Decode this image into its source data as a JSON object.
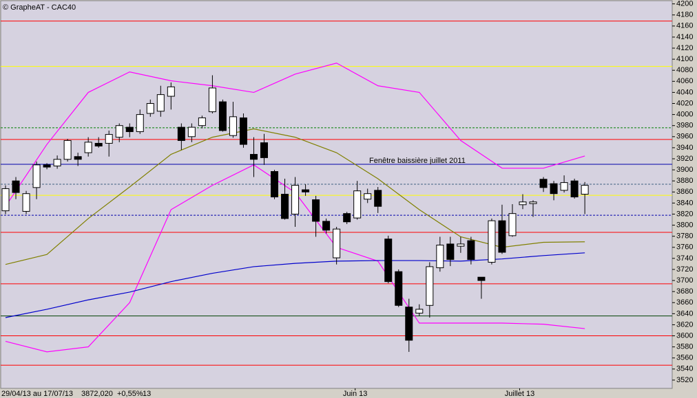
{
  "chart_data": {
    "type": "candlestick",
    "title": "© GrapheAT - CAC40",
    "period": "29/04/13 au 17/07/13",
    "last": "3872,020",
    "change": "+0,55%",
    "count": "13",
    "annotation": "Fenêtre baissière juillet 2011",
    "ylim": [
      3505,
      4207
    ],
    "yticks": [
      3520,
      3540,
      3560,
      3580,
      3600,
      3620,
      3640,
      3660,
      3680,
      3700,
      3720,
      3740,
      3760,
      3780,
      3800,
      3820,
      3840,
      3860,
      3880,
      3900,
      3920,
      3940,
      3960,
      3980,
      4000,
      4020,
      4040,
      4060,
      4080,
      4100,
      4120,
      4140,
      4160,
      4180,
      4200
    ],
    "xlim": [
      -0.5,
      63.8
    ],
    "xticks": [
      {
        "value": 33.8,
        "label": "Juin 13"
      },
      {
        "value": 49.7,
        "label": "Juillet 13"
      }
    ],
    "up_color": "#ffffff",
    "down_color": "#000000",
    "open": [
      3826,
      3880,
      3825,
      3868,
      3909,
      3907,
      3919,
      3924,
      3931,
      3948,
      3948,
      3959,
      3977,
      3969,
      4002,
      4006,
      4033,
      3977,
      3960,
      3980,
      4005,
      4023,
      3962,
      3994,
      3928,
      3949,
      3897,
      3856,
      3820,
      3864,
      3846,
      3807,
      3741,
      3821,
      3813,
      3847,
      3863,
      3775,
      3716,
      3652,
      3641,
      3655,
      3723,
      3766,
      3762,
      3772,
      3706,
      3733,
      3808,
      3781,
      3837,
      3839,
      3883,
      3875,
      3863,
      3880,
      3856
    ],
    "high": [
      3872,
      3887,
      3862,
      3915,
      3912,
      3926,
      3956,
      3931,
      3959,
      3959,
      3971,
      3984,
      3984,
      4009,
      4027,
      4052,
      4058,
      3984,
      3984,
      3998,
      4071,
      4027,
      4023,
      4002,
      3959,
      3965,
      3900,
      3884,
      3887,
      3874,
      3853,
      3812,
      3797,
      3824,
      3880,
      3866,
      3869,
      3781,
      3720,
      3667,
      3657,
      3733,
      3779,
      3779,
      3779,
      3779,
      3706,
      3812,
      3837,
      3838,
      3856,
      3845,
      3887,
      3880,
      3890,
      3884,
      3878
    ],
    "low": [
      3820,
      3847,
      3820,
      3847,
      3901,
      3902,
      3915,
      3907,
      3924,
      3940,
      3924,
      3950,
      3959,
      3965,
      3996,
      3996,
      4009,
      3936,
      3950,
      3975,
      4002,
      3969,
      3958,
      3940,
      3887,
      3909,
      3847,
      3810,
      3797,
      3853,
      3779,
      3785,
      3729,
      3802,
      3810,
      3840,
      3822,
      3695,
      3652,
      3571,
      3636,
      3633,
      3716,
      3726,
      3750,
      3729,
      3667,
      3729,
      3748,
      3779,
      3829,
      3815,
      3860,
      3845,
      3859,
      3848,
      3820
    ],
    "close": [
      3866,
      3859,
      3857,
      3909,
      3905,
      3919,
      3953,
      3919,
      3950,
      3943,
      3964,
      3980,
      3969,
      4000,
      4020,
      4036,
      4050,
      3953,
      3977,
      3994,
      4048,
      3971,
      3996,
      3946,
      3919,
      3922,
      3851,
      3812,
      3872,
      3860,
      3807,
      3791,
      3793,
      3806,
      3862,
      3857,
      3834,
      3698,
      3655,
      3592,
      3648,
      3725,
      3764,
      3738,
      3766,
      3738,
      3700,
      3808,
      3751,
      3821,
      3842,
      3842,
      3868,
      3857,
      3877,
      3851,
      3872
    ],
    "lines": [
      {
        "color": "#ff00ff",
        "x": [
          0,
          4,
          8,
          12,
          16,
          20,
          24,
          28,
          32,
          36,
          40,
          44,
          48,
          52,
          56
        ],
        "values": [
          3834,
          3946,
          4040,
          4077,
          4061,
          4052,
          4040,
          4073,
          4093,
          4052,
          4040,
          3953,
          3903,
          3903,
          3925
        ]
      },
      {
        "color": "#ff00ff",
        "x": [
          0,
          4,
          8,
          12,
          16,
          20,
          24,
          28,
          32,
          36,
          40,
          44,
          48,
          52,
          56
        ],
        "values": [
          3590,
          3571,
          3580,
          3660,
          3828,
          3872,
          3909,
          3859,
          3760,
          3735,
          3623,
          3623,
          3623,
          3621,
          3613
        ]
      },
      {
        "color": "#808000",
        "x": [
          0,
          4,
          8,
          12,
          16,
          20,
          24,
          28,
          32,
          36,
          40,
          44,
          48,
          52,
          56
        ],
        "values": [
          3729,
          3747,
          3812,
          3869,
          3928,
          3959,
          3974,
          3959,
          3931,
          3884,
          3828,
          3779,
          3760,
          3769,
          3770
        ]
      },
      {
        "color": "#0000cc",
        "x": [
          0,
          4,
          8,
          12,
          16,
          20,
          24,
          28,
          32,
          36,
          40,
          44,
          48,
          52,
          56
        ],
        "values": [
          3633,
          3648,
          3665,
          3679,
          3698,
          3713,
          3725,
          3731,
          3735,
          3736,
          3736,
          3735,
          3739,
          3745,
          3750
        ]
      }
    ],
    "hlines": [
      {
        "value": 4169,
        "color": "#ff0000",
        "dashed": false
      },
      {
        "value": 4087,
        "color": "#ffff00",
        "dashed": false
      },
      {
        "value": 3976,
        "color": "#008000",
        "dashed": true
      },
      {
        "value": 3955,
        "color": "#ff0000",
        "dashed": false
      },
      {
        "value": 3910,
        "color": "#0000aa",
        "dashed": false
      },
      {
        "value": 3874,
        "color": "#406080",
        "dashed": true
      },
      {
        "value": 3854,
        "color": "#ffff00",
        "dashed": false
      },
      {
        "value": 3818,
        "color": "#0000aa",
        "dashed": true
      },
      {
        "value": 3787,
        "color": "#ff0000",
        "dashed": false
      },
      {
        "value": 3694,
        "color": "#ff0000",
        "dashed": false
      },
      {
        "value": 3636,
        "color": "#004000",
        "dashed": false
      },
      {
        "value": 3600,
        "color": "#ff0000",
        "dashed": false
      },
      {
        "value": 3547,
        "color": "#ff0000",
        "dashed": false
      }
    ]
  }
}
